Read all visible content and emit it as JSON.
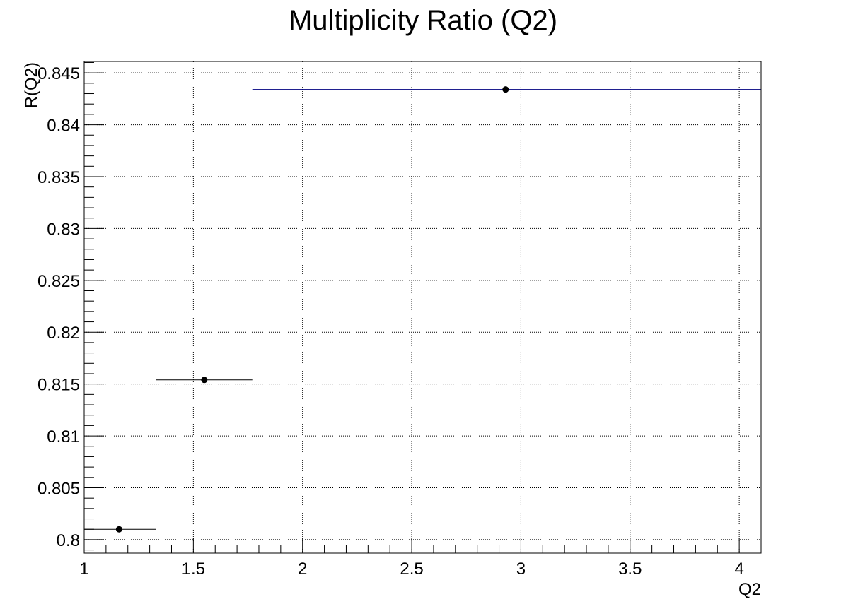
{
  "chart_data": {
    "type": "scatter",
    "title": "Multiplicity Ratio (Q2)",
    "xlabel": "Q2",
    "ylabel": "R(Q2)",
    "xlim": [
      1.0,
      4.1
    ],
    "ylim": [
      0.7987,
      0.8461
    ],
    "x_major_ticks": [
      1,
      1.5,
      2,
      2.5,
      3,
      3.5,
      4
    ],
    "x_tick_labels": [
      "1",
      "1.5",
      "2",
      "2.5",
      "3",
      "3.5",
      "4"
    ],
    "y_major_ticks": [
      0.8,
      0.805,
      0.81,
      0.815,
      0.82,
      0.825,
      0.83,
      0.835,
      0.84,
      0.845
    ],
    "y_tick_labels": [
      "0.8",
      "0.805",
      "0.81",
      "0.815",
      "0.82",
      "0.825",
      "0.83",
      "0.835",
      "0.84",
      "0.845"
    ],
    "grid": true,
    "grid_style": "dotted",
    "series": [
      {
        "points": [
          {
            "x": 1.16,
            "y": 0.801,
            "xlow": 1.0,
            "xhigh": 1.33
          },
          {
            "x": 1.55,
            "y": 0.8154,
            "xlow": 1.33,
            "xhigh": 1.77
          },
          {
            "x": 2.93,
            "y": 0.8434,
            "xlow": 1.77,
            "xhigh": 4.1
          }
        ],
        "marker_color": "#000000",
        "error_bar_colors": [
          "#000000",
          "#000000",
          "#000080"
        ]
      }
    ]
  }
}
